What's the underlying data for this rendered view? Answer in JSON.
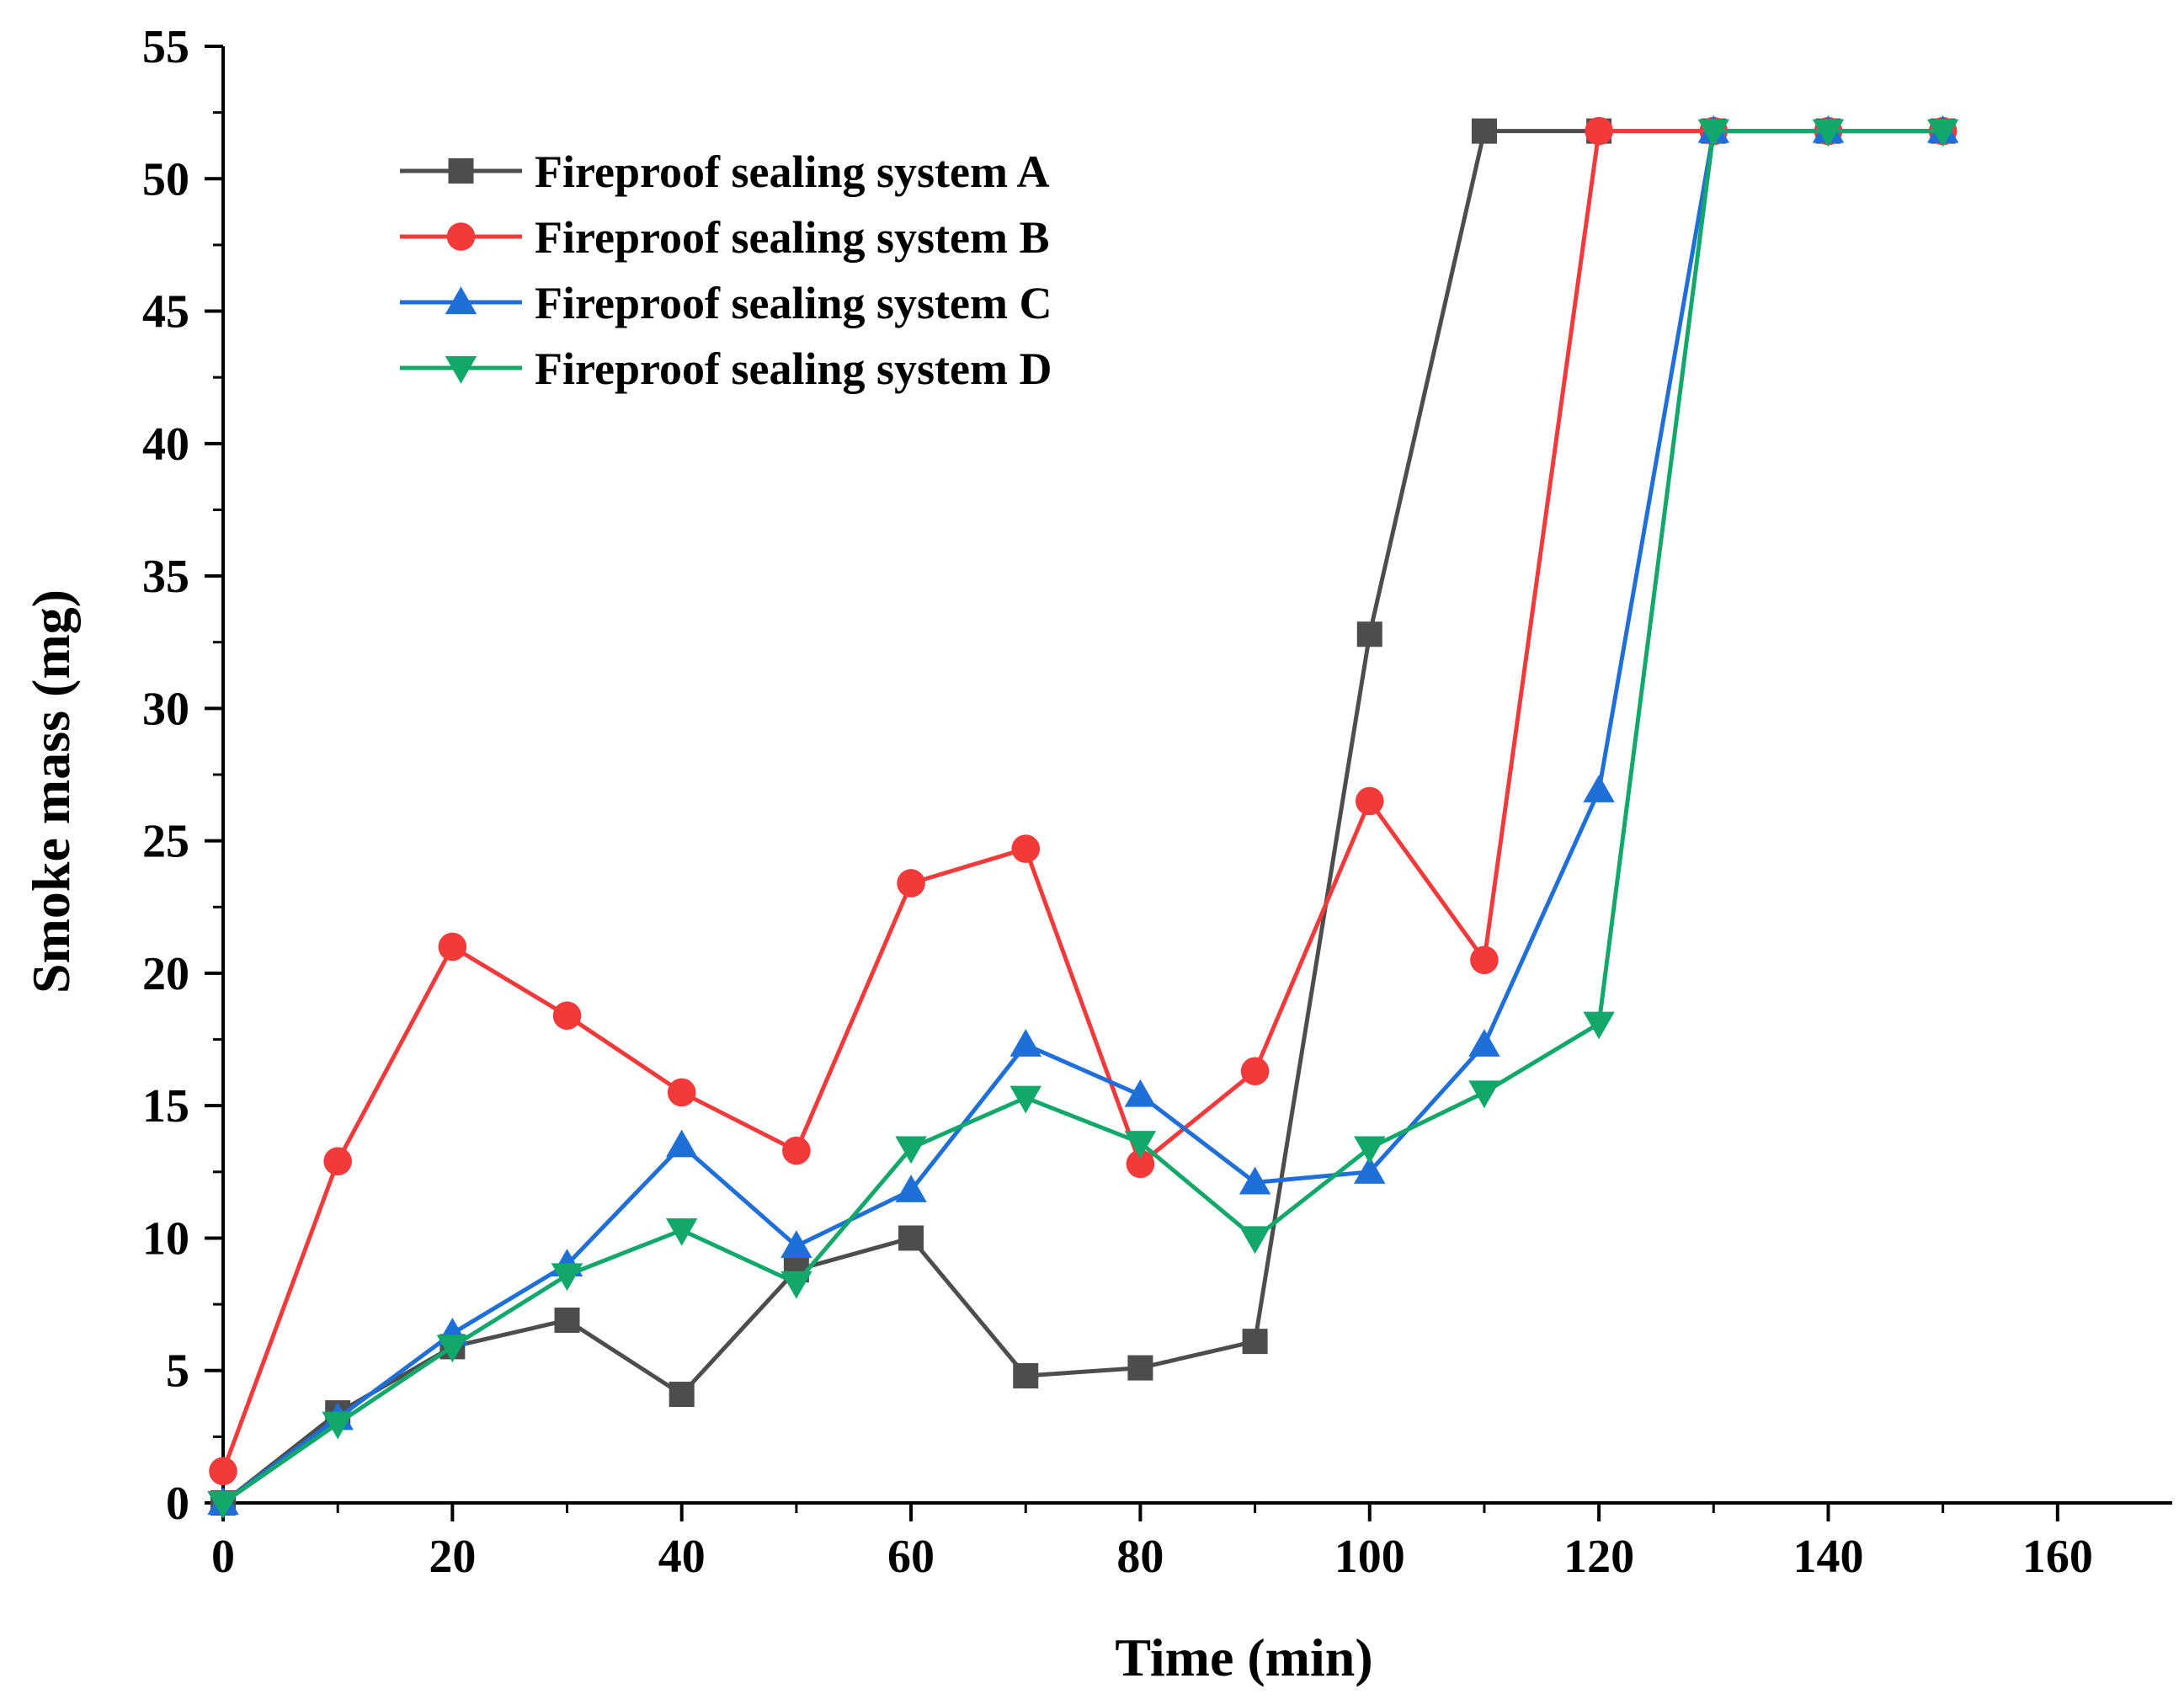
{
  "chart_data": {
    "type": "line",
    "title": "",
    "xlabel": "Time (min)",
    "ylabel": "Smoke mass (mg)",
    "xlim": [
      0,
      170
    ],
    "ylim": [
      0,
      55
    ],
    "xticks": [
      0,
      20,
      40,
      60,
      80,
      100,
      120,
      140,
      160
    ],
    "xtick_labels": [
      "0",
      "20",
      "40",
      "60",
      "80",
      "100",
      "120",
      "140",
      "160"
    ],
    "yticks": [
      0,
      5,
      10,
      15,
      20,
      25,
      30,
      35,
      40,
      45,
      50,
      55
    ],
    "ytick_labels": [
      "0",
      "5",
      "10",
      "15",
      "20",
      "25",
      "30",
      "35",
      "40",
      "45",
      "50",
      "55"
    ],
    "grid": false,
    "legend_position": "top-left",
    "series": [
      {
        "name": "Fireproof sealing system A",
        "color": "#4d4d4d",
        "marker": "square",
        "x": [
          0,
          10,
          20,
          30,
          40,
          50,
          60,
          70,
          80,
          90,
          100,
          110,
          120,
          130,
          140,
          150
        ],
        "values": [
          0,
          3.4,
          5.9,
          6.9,
          4.1,
          8.8,
          10.0,
          4.8,
          5.1,
          6.1,
          32.8,
          51.8,
          51.8,
          51.8,
          51.8,
          51.8
        ]
      },
      {
        "name": "Fireproof sealing system B",
        "color": "#f23a3a",
        "marker": "circle",
        "x": [
          0,
          10,
          20,
          30,
          40,
          50,
          60,
          70,
          80,
          90,
          100,
          110,
          120,
          130,
          140,
          150
        ],
        "values": [
          1.2,
          12.9,
          21.0,
          18.4,
          15.5,
          13.3,
          23.4,
          24.7,
          12.8,
          16.3,
          26.5,
          20.5,
          51.8,
          51.8,
          51.8,
          51.8
        ]
      },
      {
        "name": "Fireproof sealing system C",
        "color": "#1f6fd9",
        "marker": "triangle-up",
        "x": [
          0,
          10,
          20,
          30,
          40,
          50,
          60,
          70,
          80,
          90,
          100,
          110,
          120,
          130,
          140,
          150
        ],
        "values": [
          0,
          3.2,
          6.4,
          9.0,
          13.5,
          9.7,
          11.8,
          17.3,
          15.4,
          12.1,
          12.5,
          17.3,
          26.9,
          51.8,
          51.8,
          51.8
        ]
      },
      {
        "name": "Fireproof sealing system D",
        "color": "#12a86b",
        "marker": "triangle-down",
        "x": [
          0,
          10,
          20,
          30,
          40,
          50,
          60,
          70,
          80,
          90,
          100,
          110,
          120,
          130,
          140,
          150
        ],
        "values": [
          0,
          3.0,
          5.9,
          8.6,
          10.3,
          8.3,
          13.4,
          15.3,
          13.6,
          10.0,
          13.4,
          15.5,
          18.1,
          51.8,
          51.8,
          51.8
        ]
      }
    ]
  }
}
